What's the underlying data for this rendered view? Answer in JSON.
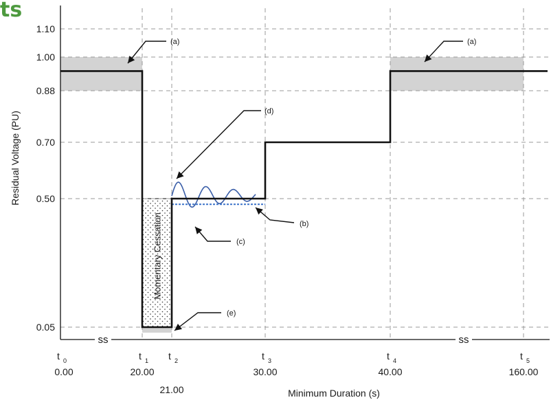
{
  "brand_fragment": "ts",
  "chart_data": {
    "type": "line",
    "title": "",
    "xlabel": "Minimum Duration (s)",
    "ylabel": "Residual Voltage (PU)",
    "ylim": [
      0,
      1.18
    ],
    "grid": true,
    "y_ticks": [
      {
        "value": 1.1,
        "label": "1.10"
      },
      {
        "value": 1.0,
        "label": "1.00"
      },
      {
        "value": 0.88,
        "label": "0.88"
      },
      {
        "value": 0.7,
        "label": "0.70"
      },
      {
        "value": 0.5,
        "label": "0.50"
      },
      {
        "value": 0.05,
        "label": "0.05"
      }
    ],
    "x_points": [
      {
        "name": "t0",
        "sym": "t",
        "sub": "0",
        "value": "0.00"
      },
      {
        "name": "t1",
        "sym": "t",
        "sub": "1",
        "value": "20.00"
      },
      {
        "name": "t2",
        "sym": "t",
        "sub": "2",
        "value": "21.00"
      },
      {
        "name": "t3",
        "sym": "t",
        "sub": "3",
        "value": "30.00"
      },
      {
        "name": "t4",
        "sym": "t",
        "sub": "4",
        "value": "40.00"
      },
      {
        "name": "t5",
        "sym": "t",
        "sub": "5",
        "value": "160.00"
      }
    ],
    "axis_break_mark": "ss",
    "profile": [
      {
        "from": "t0",
        "to": "t1",
        "v": 0.95
      },
      {
        "from": "t1",
        "to": "t2",
        "v": 0.05
      },
      {
        "from": "t2",
        "to": "t3",
        "v": 0.5
      },
      {
        "from": "t3",
        "to": "t4",
        "v": 0.7
      },
      {
        "from": "t4",
        "to": "end",
        "v": 0.95
      }
    ],
    "normal_band": [
      0.88,
      1.0
    ],
    "cessation_region": {
      "from": "t1",
      "to": "t2",
      "v_low": 0.05,
      "v_high": 0.5,
      "label": "Momentary Cessation"
    },
    "dashed_level": 0.48,
    "annotations": [
      "(a)",
      "(a)",
      "(b)",
      "(c)",
      "(d)",
      "(e)"
    ],
    "colors": {
      "profile": "#111111",
      "band": "#d3d3d3",
      "oscillation": "#3a5ea8",
      "dashed": "#3b73c9",
      "grid": "#9a9a9a"
    }
  }
}
